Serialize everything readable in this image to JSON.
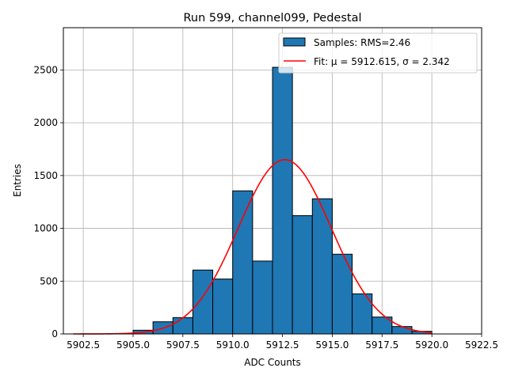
{
  "chart_data": {
    "type": "bar",
    "title": "Run 599, channel099, Pedestal",
    "xlabel": "ADC Counts",
    "ylabel": "Entries",
    "xlim": [
      5901.5,
      5922.5
    ],
    "ylim": [
      0,
      2900
    ],
    "xticks": [
      "5902.5",
      "5905.0",
      "5907.5",
      "5910.0",
      "5912.5",
      "5915.0",
      "5917.5",
      "5920.0",
      "5922.5"
    ],
    "yticks": [
      "0",
      "500",
      "1000",
      "1500",
      "2000",
      "2500"
    ],
    "grid": true,
    "legend_position": "top-right",
    "series": [
      {
        "name": "Samples: RMS=2.46",
        "kind": "histogram",
        "color": "#1f77b4",
        "bins": [
          {
            "x0": 5905,
            "x1": 5906,
            "value": 35
          },
          {
            "x0": 5906,
            "x1": 5907,
            "value": 115
          },
          {
            "x0": 5907,
            "x1": 5908,
            "value": 155
          },
          {
            "x0": 5908,
            "x1": 5909,
            "value": 605
          },
          {
            "x0": 5909,
            "x1": 5910,
            "value": 520
          },
          {
            "x0": 5910,
            "x1": 5911,
            "value": 1355
          },
          {
            "x0": 5911,
            "x1": 5912,
            "value": 690
          },
          {
            "x0": 5912,
            "x1": 5913,
            "value": 2525
          },
          {
            "x0": 5913,
            "x1": 5914,
            "value": 1120
          },
          {
            "x0": 5914,
            "x1": 5915,
            "value": 1280
          },
          {
            "x0": 5915,
            "x1": 5916,
            "value": 755
          },
          {
            "x0": 5916,
            "x1": 5917,
            "value": 380
          },
          {
            "x0": 5917,
            "x1": 5918,
            "value": 160
          },
          {
            "x0": 5918,
            "x1": 5919,
            "value": 70
          },
          {
            "x0": 5919,
            "x1": 5920,
            "value": 25
          }
        ]
      },
      {
        "name": "Fit: μ = 5912.615, σ = 2.342",
        "kind": "gaussian-line",
        "color": "#ff0000",
        "mu": 5912.615,
        "sigma": 2.342,
        "amplitude": 1650,
        "x_range": [
          5902,
          5920
        ]
      }
    ],
    "legend": {
      "samples_label": "Samples: RMS=2.46",
      "fit_label": "Fit: μ = 5912.615, σ = 2.342"
    }
  }
}
